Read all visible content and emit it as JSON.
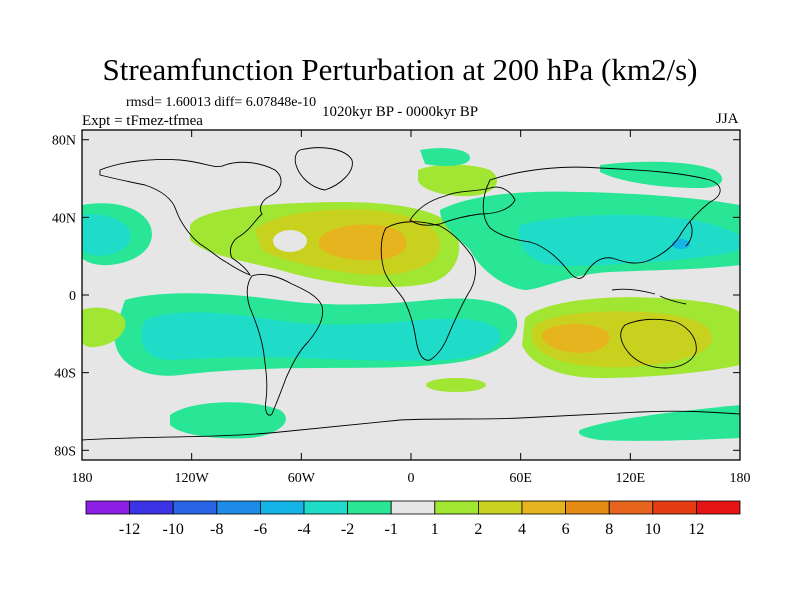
{
  "chart_data": {
    "type": "heatmap",
    "title": "Streamfunction Perturbation at 200 hPa (km2/s)",
    "stats": "rmsd= 1.60013  diff= 6.07848e-10",
    "experiment": "Expt = tFmez-tfmea",
    "period": "1020kyr BP - 0000kyr BP",
    "season": "JJA",
    "x_ticks": [
      "180",
      "120W",
      "60W",
      "0",
      "60E",
      "120E",
      "180"
    ],
    "x_tick_values": [
      -180,
      -120,
      -60,
      0,
      60,
      120,
      180
    ],
    "y_ticks": [
      "80N",
      "40N",
      "0",
      "40S",
      "80S"
    ],
    "y_tick_values": [
      80,
      40,
      0,
      -40,
      -80
    ],
    "xlim": [
      -180,
      180
    ],
    "ylim": [
      -85,
      85
    ],
    "colorbar": {
      "labels": [
        "-12",
        "-10",
        "-8",
        "-6",
        "-4",
        "-2",
        "-1",
        "1",
        "2",
        "4",
        "6",
        "8",
        "10",
        "12"
      ],
      "colors": [
        "#8c1ee6",
        "#3c32e6",
        "#2864e6",
        "#1e8ce6",
        "#14b4e6",
        "#1edcc8",
        "#28e696",
        "#e6e6e6",
        "#a0e632",
        "#c8d21e",
        "#e6b41e",
        "#e68c14",
        "#e6641e",
        "#e63c14",
        "#e61414"
      ]
    },
    "features": [
      {
        "name": "north-atlantic-positive",
        "level": 6,
        "lon": -25,
        "lat": 24
      },
      {
        "name": "australia-positive",
        "level": 4,
        "lon": 95,
        "lat": -25
      },
      {
        "name": "southern-tropics-negative-band",
        "level": -2,
        "lon": -60,
        "lat": -18
      },
      {
        "name": "asia-pacific-negative-band",
        "level": -2,
        "lon": 120,
        "lat": 30
      },
      {
        "name": "atlantic-negative-center",
        "level": -2,
        "lon": -170,
        "lat": 30
      }
    ]
  }
}
